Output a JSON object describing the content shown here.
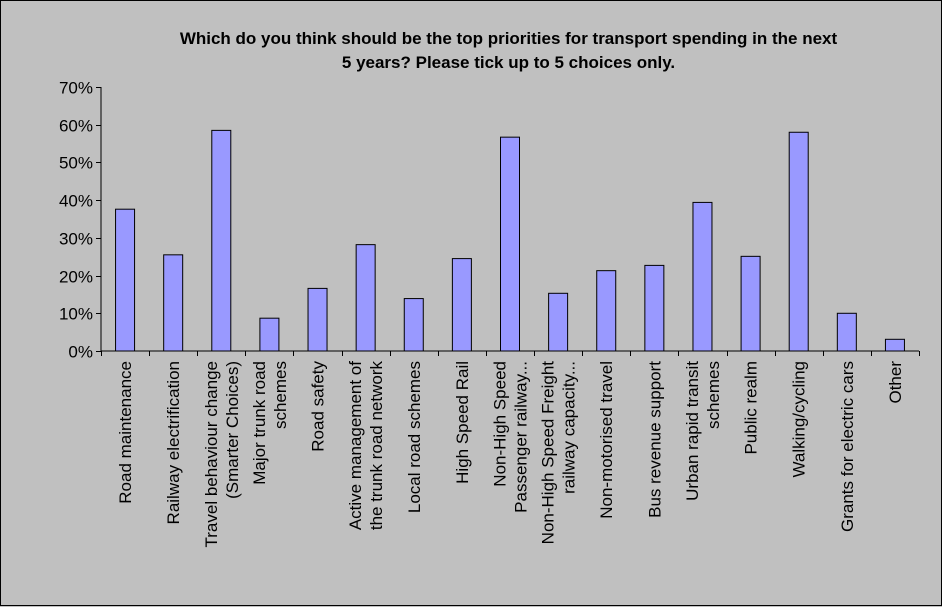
{
  "chart_data": {
    "type": "bar",
    "title_lines": [
      "Which do you think should be the top priorities for transport spending in the next",
      "5 years? Please tick up to 5 choices only."
    ],
    "xlabel": "",
    "ylabel": "",
    "ylim": [
      0,
      0.7
    ],
    "ytick_step": 0.1,
    "ytick_labels": [
      "0%",
      "10%",
      "20%",
      "30%",
      "40%",
      "50%",
      "60%",
      "70%"
    ],
    "grid": false,
    "legend": "none",
    "bar_color": "#9999ff",
    "bar_edge_color": "#000000",
    "categories": [
      [
        "Road maintenance"
      ],
      [
        "Railway electrification"
      ],
      [
        "Travel behaviour change",
        "(Smarter Choices)"
      ],
      [
        "Major trunk road",
        "schemes"
      ],
      [
        "Road safety"
      ],
      [
        "Active management of",
        "the trunk road network"
      ],
      [
        "Local road schemes"
      ],
      [
        "High Speed Rail"
      ],
      [
        "Non-High Speed",
        "Passenger railway..."
      ],
      [
        "Non-High Speed Freight",
        "railway capacity..."
      ],
      [
        "Non-motorised travel"
      ],
      [
        "Bus revenue support"
      ],
      [
        "Urban rapid transit",
        "schemes"
      ],
      [
        "Public realm"
      ],
      [
        "Walking/cycling"
      ],
      [
        "Grants for electric cars"
      ],
      [
        "Other"
      ]
    ],
    "values": [
      0.376,
      0.255,
      0.585,
      0.087,
      0.166,
      0.282,
      0.139,
      0.245,
      0.567,
      0.153,
      0.213,
      0.227,
      0.394,
      0.251,
      0.58,
      0.1,
      0.031
    ]
  }
}
